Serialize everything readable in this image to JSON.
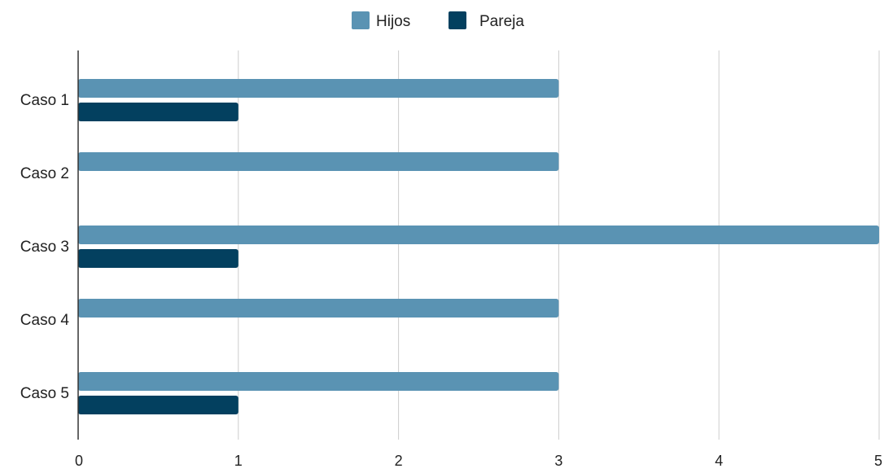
{
  "chart_data": {
    "type": "bar",
    "orientation": "horizontal",
    "categories": [
      "Caso 1",
      "Caso 2",
      "Caso 3",
      "Caso 4",
      "Caso 5"
    ],
    "series": [
      {
        "name": "Hijos",
        "values": [
          3,
          3,
          5,
          3,
          3
        ],
        "color": "#5a93b3"
      },
      {
        "name": "Pareja",
        "values": [
          1,
          null,
          1,
          null,
          1
        ],
        "color": "#03405f"
      }
    ],
    "title": "",
    "xlabel": "",
    "ylabel": "",
    "xlim": [
      0,
      5
    ],
    "xticks": [
      "0",
      "1",
      "2",
      "3",
      "4",
      "5"
    ],
    "grid": true,
    "legend_position": "top"
  }
}
